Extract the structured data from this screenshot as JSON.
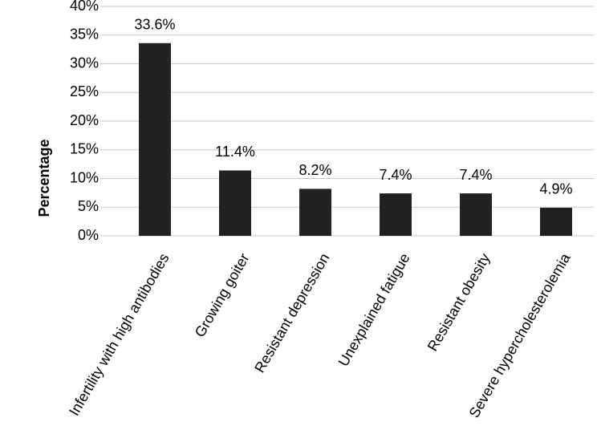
{
  "chart_data": {
    "type": "bar",
    "y_label": "Percentage",
    "categories": [
      "Infertility with high antibodies",
      "Growing goiter",
      "Resistant depression",
      "Unexplained fatigue",
      "Resistant obesity",
      "Severe hypercholesterolemia"
    ],
    "values": [
      33.6,
      11.4,
      8.2,
      7.4,
      7.4,
      4.9
    ],
    "value_labels": [
      "33.6%",
      "11.4%",
      "8.2%",
      "7.4%",
      "7.4%",
      "4.9%"
    ],
    "color": "#222222",
    "ylim": [
      0,
      40
    ],
    "yticks": [
      {
        "value": 0,
        "label": "0%"
      },
      {
        "value": 5,
        "label": "5%"
      },
      {
        "value": 10,
        "label": "10%"
      },
      {
        "value": 15,
        "label": "15%"
      },
      {
        "value": 20,
        "label": "20%"
      },
      {
        "value": 25,
        "label": "25%"
      },
      {
        "value": 30,
        "label": "30%"
      },
      {
        "value": 35,
        "label": "35%"
      },
      {
        "value": 40,
        "label": "40%"
      }
    ],
    "grid": true
  }
}
